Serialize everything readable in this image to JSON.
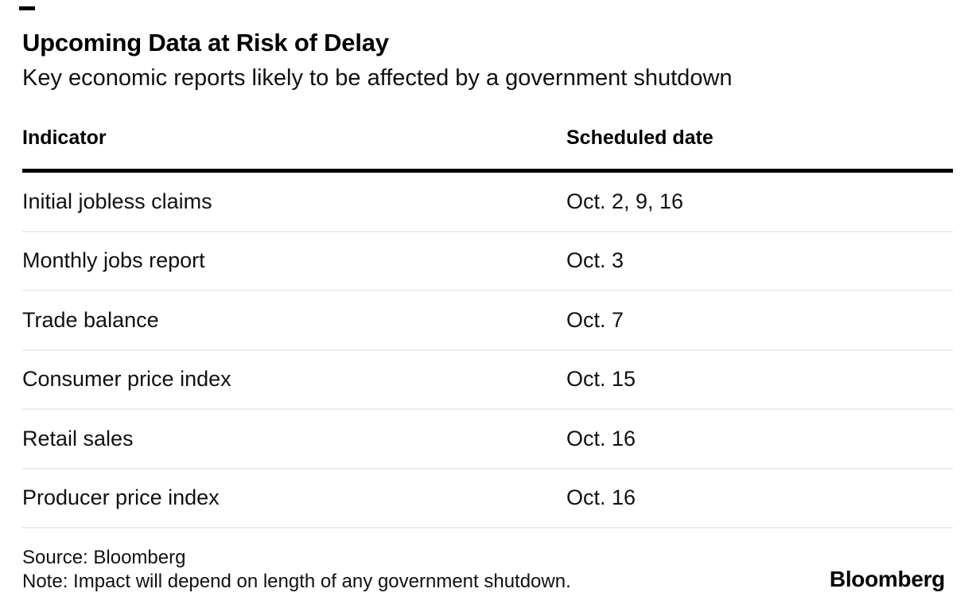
{
  "header": {
    "title": "Upcoming Data at Risk of Delay",
    "subtitle": "Key economic reports likely to be affected by a government shutdown"
  },
  "table": {
    "columns": [
      "Indicator",
      "Scheduled date"
    ],
    "rows": [
      {
        "indicator": "Initial jobless claims",
        "date": "Oct. 2, 9, 16"
      },
      {
        "indicator": "Monthly jobs report",
        "date": "Oct. 3"
      },
      {
        "indicator": "Trade balance",
        "date": "Oct. 7"
      },
      {
        "indicator": "Consumer price index",
        "date": "Oct. 15"
      },
      {
        "indicator": "Retail sales",
        "date": "Oct. 16"
      },
      {
        "indicator": "Producer price index",
        "date": "Oct. 16"
      }
    ]
  },
  "footer": {
    "source": "Source: Bloomberg",
    "note": "Note: Impact will depend on length of any government shutdown.",
    "logo": "Bloomberg"
  },
  "colors": {
    "background": "#ffffff",
    "text": "#000000",
    "thick_rule": "#000000",
    "row_divider": "#ececec"
  },
  "chart_data": {
    "type": "table",
    "title": "Upcoming Data at Risk of Delay",
    "subtitle": "Key economic reports likely to be affected by a government shutdown",
    "columns": [
      "Indicator",
      "Scheduled date"
    ],
    "rows": [
      [
        "Initial jobless claims",
        "Oct. 2, 9, 16"
      ],
      [
        "Monthly jobs report",
        "Oct. 3"
      ],
      [
        "Trade balance",
        "Oct. 7"
      ],
      [
        "Consumer price index",
        "Oct. 15"
      ],
      [
        "Retail sales",
        "Oct. 16"
      ],
      [
        "Producer price index",
        "Oct. 16"
      ]
    ],
    "source": "Source: Bloomberg",
    "note": "Note: Impact will depend on length of any government shutdown.",
    "layout_hints": {
      "grid": "horizontal row dividers only",
      "header_rule": "thick black",
      "legend": "none"
    }
  }
}
